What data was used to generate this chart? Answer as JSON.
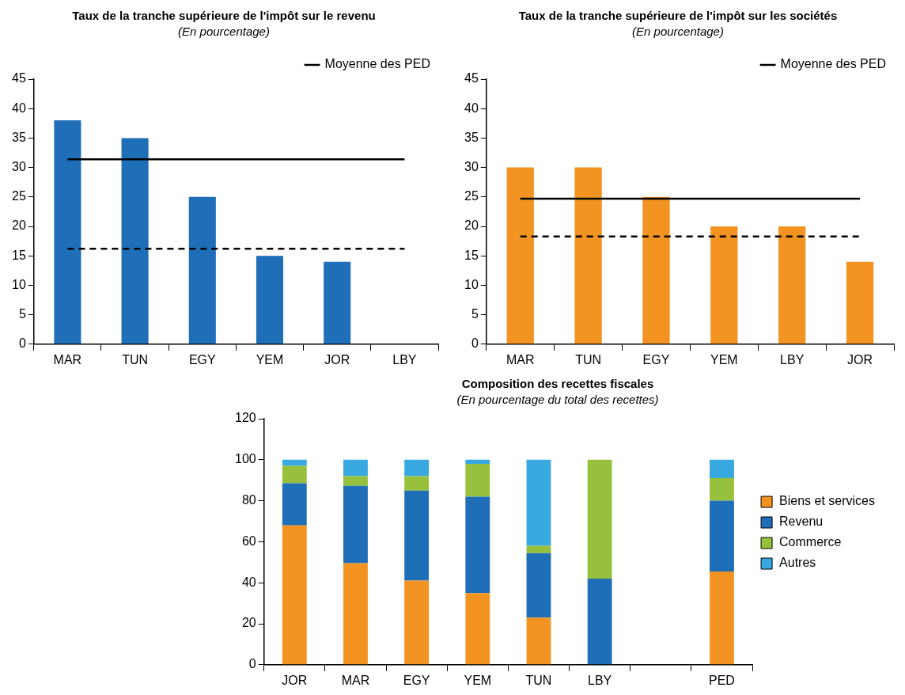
{
  "chart_data": [
    {
      "type": "bar",
      "title": "Taux de la tranche supérieure de l'impôt sur le revenu",
      "subtitle": "(En pourcentage)",
      "categories": [
        "MAR",
        "TUN",
        "EGY",
        "YEM",
        "JOR",
        "LBY"
      ],
      "series": [
        {
          "color": "#1f6eb8",
          "values": [
            38,
            35,
            25,
            15,
            14,
            null
          ]
        },
        {
          "type": "line",
          "name": "Moyenne des PED",
          "color": "#000000",
          "line_style": "solid",
          "values": [
            31.4,
            31.4,
            31.4,
            31.4,
            31.4,
            31.4
          ]
        },
        {
          "type": "line",
          "color": "#000000",
          "line_style": "dashed",
          "values": [
            16.2,
            16.2,
            16.2,
            16.2,
            16.2,
            16.2
          ]
        }
      ],
      "ylim": [
        0,
        45
      ],
      "yticks": [
        0,
        5,
        10,
        15,
        20,
        25,
        30,
        35,
        40,
        45
      ],
      "grid": false,
      "legend": "top right"
    },
    {
      "type": "bar",
      "title": "Taux de la tranche supérieure de l'impôt sur les sociétés",
      "subtitle": "(En pourcentage)",
      "categories": [
        "MAR",
        "TUN",
        "EGY",
        "YEM",
        "LBY",
        "JOR"
      ],
      "series": [
        {
          "color": "#f39422",
          "values": [
            30,
            30,
            25,
            20,
            20,
            14
          ]
        },
        {
          "type": "line",
          "name": "Moyenne des PED",
          "color": "#000000",
          "line_style": "solid",
          "values": [
            24.7,
            24.7,
            24.7,
            24.7,
            24.7,
            24.7
          ]
        },
        {
          "type": "line",
          "color": "#000000",
          "line_style": "dashed",
          "values": [
            18.3,
            18.3,
            18.3,
            18.3,
            18.3,
            18.3
          ]
        }
      ],
      "ylim": [
        0,
        45
      ],
      "yticks": [
        0,
        5,
        10,
        15,
        20,
        25,
        30,
        35,
        40,
        45
      ],
      "grid": false,
      "legend": "top right"
    },
    {
      "type": "bar",
      "title": "Composition des recettes fiscales",
      "subtitle": "(En pourcentage du total des recettes)",
      "categories": [
        "JOR",
        "MAR",
        "EGY",
        "YEM",
        "TUN",
        "LBY",
        null,
        "PED"
      ],
      "stacked": true,
      "series": [
        {
          "name": "Biens et services",
          "color": "#f39422",
          "values": [
            68,
            49.5,
            41,
            35,
            23,
            0,
            null,
            45.5
          ]
        },
        {
          "name": "Revenu",
          "color": "#1f6eb8",
          "values": [
            20.5,
            37.8,
            44,
            47,
            31.5,
            42,
            null,
            34.5
          ]
        },
        {
          "name": "Commerce",
          "color": "#97c13c",
          "values": [
            8.5,
            4.7,
            7,
            16,
            3.5,
            58,
            null,
            11
          ]
        },
        {
          "name": "Autres",
          "color": "#38a8e0",
          "values": [
            3,
            8,
            8,
            2,
            42,
            0,
            null,
            9
          ]
        }
      ],
      "ylim": [
        0,
        120
      ],
      "yticks": [
        0,
        20,
        40,
        60,
        80,
        100,
        120
      ],
      "grid": false,
      "legend": "right"
    }
  ]
}
